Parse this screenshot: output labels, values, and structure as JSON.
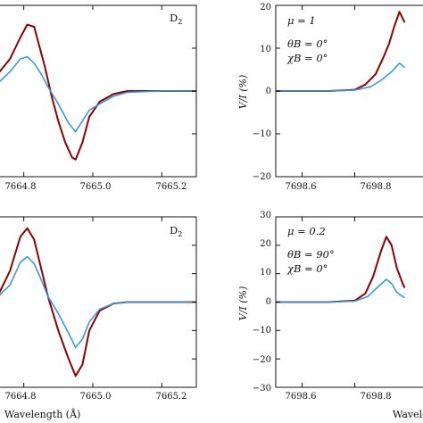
{
  "chart_data": [
    {
      "type": "line",
      "panel": "top-left",
      "title": "",
      "xlabel": "",
      "ylabel": "",
      "xlim": [
        7664.7,
        7665.3
      ],
      "ylim": [
        -20,
        20
      ],
      "xticks": [
        7664.8,
        7665.0,
        7665.2
      ],
      "xtick_labels": [
        "7664.8",
        "7665.0",
        "7665.2"
      ],
      "grid": false,
      "annotations": [
        "D2"
      ],
      "series": [
        {
          "color": "#8b0000",
          "x": [
            7664.7,
            7664.73,
            7664.76,
            7664.79,
            7664.81,
            7664.83,
            7664.84,
            7664.86,
            7664.88,
            7664.9,
            7664.92,
            7664.94,
            7664.95,
            7664.97,
            7664.99,
            7665.02,
            7665.06,
            7665.1,
            7665.2,
            7665.3
          ],
          "y": [
            3.5,
            4.5,
            7.5,
            12.5,
            15.5,
            15.0,
            12.0,
            6.0,
            -1.0,
            -7.0,
            -12.0,
            -15.5,
            -16.0,
            -12.0,
            -6.0,
            -2.5,
            -0.7,
            0.0,
            0.0,
            0.0
          ]
        },
        {
          "color": "#3a9ad9",
          "x": [
            7664.7,
            7664.73,
            7664.76,
            7664.79,
            7664.81,
            7664.83,
            7664.85,
            7664.87,
            7664.9,
            7664.93,
            7664.95,
            7664.97,
            7664.99,
            7665.02,
            7665.06,
            7665.1,
            7665.2,
            7665.3
          ],
          "y": [
            1.2,
            2.2,
            4.5,
            7.5,
            8.0,
            6.5,
            4.0,
            1.0,
            -3.0,
            -7.5,
            -9.5,
            -7.0,
            -4.5,
            -3.0,
            -1.2,
            -0.3,
            0.0,
            0.0
          ]
        }
      ]
    },
    {
      "type": "line",
      "panel": "top-right",
      "title": "",
      "xlabel": "",
      "ylabel": "V/I (%)",
      "xlim": [
        7698.5,
        7699.1
      ],
      "ylim": [
        -20,
        20
      ],
      "yticks": [
        -20,
        -10,
        0,
        10,
        20
      ],
      "ytick_labels": [
        "−20",
        "−10",
        "0",
        "10",
        "20"
      ],
      "xticks": [
        7698.6,
        7698.8
      ],
      "xtick_labels": [
        "7698.6",
        "7698.8"
      ],
      "grid": false,
      "annotations": [
        "μ = 1",
        "θB = 0°",
        "χB = 0°"
      ],
      "series": [
        {
          "color": "#8b0000",
          "x": [
            7698.5,
            7698.7,
            7698.8,
            7698.84,
            7698.88,
            7698.91,
            7698.93,
            7698.95,
            7698.97,
            7698.99
          ],
          "y": [
            0.0,
            0.0,
            0.3,
            1.5,
            4.0,
            8.0,
            11.0,
            15.0,
            18.5,
            16.0
          ]
        },
        {
          "color": "#3a9ad9",
          "x": [
            7698.5,
            7698.7,
            7698.8,
            7698.86,
            7698.9,
            7698.94,
            7698.97,
            7698.99
          ],
          "y": [
            0.0,
            0.0,
            0.2,
            1.0,
            2.5,
            4.5,
            6.5,
            5.5
          ]
        }
      ]
    },
    {
      "type": "line",
      "panel": "bottom-left",
      "title": "",
      "xlabel": "Wavelength (Å)",
      "ylabel": "",
      "xlim": [
        7664.7,
        7665.3
      ],
      "ylim": [
        -30,
        30
      ],
      "xticks": [
        7664.8,
        7665.0,
        7665.2
      ],
      "xtick_labels": [
        "7664.8",
        "7665.0",
        "7665.2"
      ],
      "grid": false,
      "annotations": [
        "D2"
      ],
      "series": [
        {
          "color": "#8b0000",
          "x": [
            7664.7,
            7664.73,
            7664.76,
            7664.79,
            7664.81,
            7664.83,
            7664.85,
            7664.87,
            7664.9,
            7664.93,
            7664.95,
            7664.97,
            7664.99,
            7665.02,
            7665.06,
            7665.1,
            7665.2,
            7665.3
          ],
          "y": [
            2.0,
            3.5,
            11.0,
            23.0,
            26.0,
            22.0,
            12.0,
            2.0,
            -10.0,
            -20.0,
            -26.0,
            -22.0,
            -10.0,
            -3.0,
            -0.5,
            0.0,
            0.0,
            0.0
          ]
        },
        {
          "color": "#3a9ad9",
          "x": [
            7664.7,
            7664.73,
            7664.76,
            7664.79,
            7664.81,
            7664.83,
            7664.85,
            7664.87,
            7664.9,
            7664.93,
            7664.95,
            7664.97,
            7664.99,
            7665.02,
            7665.06,
            7665.1,
            7665.2,
            7665.3
          ],
          "y": [
            1.5,
            2.5,
            6.0,
            14.0,
            16.0,
            13.5,
            8.0,
            2.0,
            -4.0,
            -11.0,
            -16.0,
            -13.0,
            -7.0,
            -2.5,
            -0.5,
            0.0,
            0.0,
            0.0
          ]
        }
      ]
    },
    {
      "type": "line",
      "panel": "bottom-right",
      "title": "",
      "xlabel": "Wavelength (Å)",
      "ylabel": "V/I (%)",
      "xlim": [
        7698.5,
        7699.1
      ],
      "ylim": [
        -30,
        30
      ],
      "yticks": [
        -30,
        -20,
        -10,
        0,
        10,
        20,
        30
      ],
      "ytick_labels": [
        "−30",
        "−20",
        "−10",
        "0",
        "10",
        "20",
        "30"
      ],
      "xticks": [
        7698.6,
        7698.8
      ],
      "xtick_labels": [
        "7698.6",
        "7698.8"
      ],
      "grid": false,
      "annotations": [
        "μ = 0.2",
        "θB = 90°",
        "χB = 0°"
      ],
      "series": [
        {
          "color": "#8b0000",
          "x": [
            7698.5,
            7698.7,
            7698.8,
            7698.84,
            7698.87,
            7698.9,
            7698.92,
            7698.94,
            7698.96,
            7698.98,
            7698.99
          ],
          "y": [
            0.0,
            0.0,
            0.5,
            3.0,
            9.0,
            18.0,
            23.0,
            20.0,
            12.0,
            7.0,
            5.0
          ]
        },
        {
          "color": "#3a9ad9",
          "x": [
            7698.5,
            7698.7,
            7698.8,
            7698.85,
            7698.89,
            7698.92,
            7698.94,
            7698.96,
            7698.98,
            7698.99
          ],
          "y": [
            0.0,
            0.0,
            0.3,
            2.0,
            5.5,
            8.0,
            6.5,
            3.5,
            2.0,
            1.5
          ]
        }
      ]
    }
  ]
}
